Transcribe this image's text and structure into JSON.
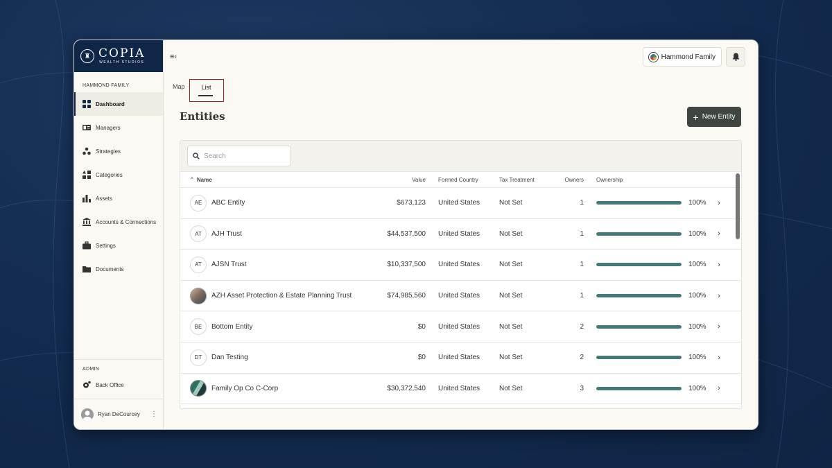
{
  "brand": {
    "name": "COPIA",
    "sub": "WEALTH STUDIOS"
  },
  "sidebar": {
    "section_label": "HAMMOND FAMILY",
    "items": [
      {
        "label": "Dashboard",
        "icon": "grid-icon",
        "active": true
      },
      {
        "label": "Managers",
        "icon": "id-card-icon"
      },
      {
        "label": "Strategies",
        "icon": "strategy-icon"
      },
      {
        "label": "Categories",
        "icon": "categories-icon"
      },
      {
        "label": "Assets",
        "icon": "bar-chart-icon"
      },
      {
        "label": "Accounts & Connections",
        "icon": "bank-icon"
      },
      {
        "label": "Settings",
        "icon": "briefcase-icon"
      },
      {
        "label": "Documents",
        "icon": "folder-icon"
      }
    ],
    "admin_label": "ADMIN",
    "admin_items": [
      {
        "label": "Back Office",
        "icon": "gear-icon"
      }
    ],
    "user": {
      "name": "Ryan DeCourcey"
    }
  },
  "header": {
    "family_button": "Hammond Family"
  },
  "tabs": [
    {
      "label": "Map"
    },
    {
      "label": "List",
      "active": true
    }
  ],
  "page": {
    "title": "Entities",
    "new_button": "New Entity"
  },
  "search": {
    "placeholder": "Search"
  },
  "table": {
    "columns": {
      "name": "Name",
      "value": "Value",
      "country": "Formed Country",
      "tax": "Tax Treatment",
      "owners": "Owners",
      "ownership": "Ownership"
    },
    "rows": [
      {
        "initials": "AE",
        "name": "ABC Entity",
        "value": "$673,123",
        "country": "United States",
        "tax": "Not Set",
        "owners": "1",
        "ownership_pct": "100%",
        "ownership_fraction": 1.0
      },
      {
        "initials": "AT",
        "name": "AJH Trust",
        "value": "$44,537,500",
        "country": "United States",
        "tax": "Not Set",
        "owners": "1",
        "ownership_pct": "100%",
        "ownership_fraction": 1.0
      },
      {
        "initials": "AT",
        "name": "AJSN Trust",
        "value": "$10,337,500",
        "country": "United States",
        "tax": "Not Set",
        "owners": "1",
        "ownership_pct": "100%",
        "ownership_fraction": 1.0
      },
      {
        "initials": "",
        "avatar": "photo",
        "name": "AZH Asset Protection & Estate Planning Trust",
        "value": "$74,985,560",
        "country": "United States",
        "tax": "Not Set",
        "owners": "1",
        "ownership_pct": "100%",
        "ownership_fraction": 1.0
      },
      {
        "initials": "BE",
        "name": "Bottom Entity",
        "value": "$0",
        "country": "United States",
        "tax": "Not Set",
        "owners": "2",
        "ownership_pct": "100%",
        "ownership_fraction": 1.0
      },
      {
        "initials": "DT",
        "name": "Dan Testing",
        "value": "$0",
        "country": "United States",
        "tax": "Not Set",
        "owners": "2",
        "ownership_pct": "100%",
        "ownership_fraction": 1.0
      },
      {
        "initials": "",
        "avatar": "pic2",
        "name": "Family Op Co C-Corp",
        "value": "$30,372,540",
        "country": "United States",
        "tax": "Not Set",
        "owners": "3",
        "ownership_pct": "100%",
        "ownership_fraction": 1.0
      }
    ]
  },
  "colors": {
    "brand_navy": "#0f2647",
    "progress": "#437a78",
    "button_dark": "#3f4541",
    "highlight_border": "#a32020"
  }
}
